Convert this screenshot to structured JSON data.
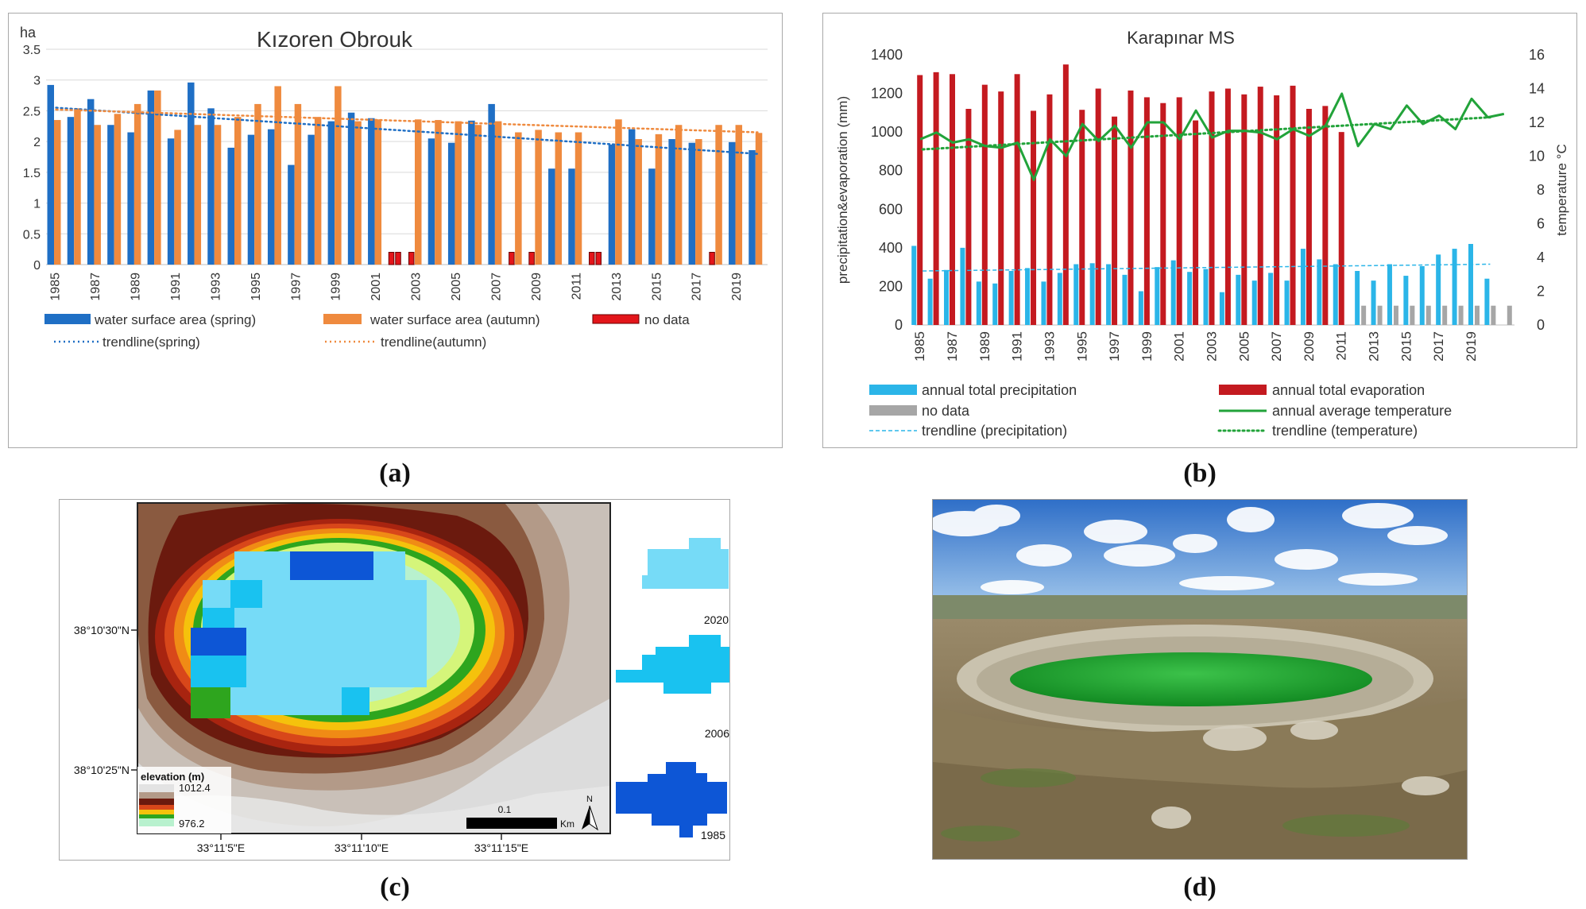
{
  "captions": {
    "a": "(a)",
    "b": "(b)",
    "c": "(c)",
    "d": "(d)"
  },
  "chart_data": [
    {
      "type": "bar",
      "title": "Kızoren Obrouk",
      "ylabel": "ha",
      "ylim": [
        0,
        3.5
      ],
      "yticks": [
        "3.5",
        "3",
        "2.5",
        "2",
        "1.5",
        "1",
        "0.5",
        "0"
      ],
      "x": [
        "1985",
        "1986",
        "1987",
        "1988",
        "1989",
        "1990",
        "1991",
        "1992",
        "1993",
        "1994",
        "1995",
        "1996",
        "1997",
        "1998",
        "1999",
        "2000",
        "2001",
        "2002",
        "2003",
        "2004",
        "2005",
        "2006",
        "2007",
        "2008",
        "2009",
        "2010",
        "2011",
        "2012",
        "2013",
        "2014",
        "2015",
        "2016",
        "2017",
        "2018",
        "2019",
        "2020"
      ],
      "xtick_labels": [
        "1985",
        "1987",
        "1989",
        "1991",
        "1993",
        "1995",
        "1997",
        "1999",
        "2001",
        "2003",
        "2005",
        "2007",
        "2009",
        "2011",
        "2013",
        "2015",
        "2017",
        "2019"
      ],
      "series": [
        {
          "name": "water surface area (spring)",
          "color": "#1f6fc5",
          "values": [
            2.92,
            2.4,
            2.69,
            2.27,
            2.15,
            2.83,
            2.05,
            2.96,
            2.54,
            1.9,
            2.11,
            2.2,
            1.62,
            2.11,
            2.33,
            2.47,
            2.38,
            null,
            null,
            2.05,
            1.98,
            2.34,
            2.61,
            null,
            null,
            1.56,
            1.56,
            null,
            1.95,
            2.2,
            1.56,
            2.04,
            1.98,
            null,
            1.99,
            1.86
          ]
        },
        {
          "name": "water surface area (autumn)",
          "color": "#ef8a3e",
          "values": [
            2.35,
            2.54,
            2.27,
            2.45,
            2.61,
            2.83,
            2.19,
            2.27,
            2.27,
            2.4,
            2.61,
            2.9,
            2.61,
            2.4,
            2.9,
            2.33,
            2.36,
            null,
            2.36,
            2.35,
            2.33,
            2.27,
            2.33,
            2.15,
            2.19,
            2.15,
            2.15,
            null,
            2.36,
            2.04,
            2.12,
            2.27,
            2.04,
            2.27,
            2.27,
            2.14
          ]
        }
      ],
      "no_data": [
        {
          "year": "2002",
          "slots": [
            "spring",
            "autumn"
          ]
        },
        {
          "year": "2003",
          "slots": [
            "spring"
          ]
        },
        {
          "year": "2008",
          "slots": [
            "spring"
          ]
        },
        {
          "year": "2009",
          "slots": [
            "spring"
          ]
        },
        {
          "year": "2012",
          "slots": [
            "spring",
            "autumn"
          ]
        },
        {
          "year": "2018",
          "slots": [
            "spring"
          ]
        }
      ],
      "no_data_value": 0.2,
      "trendlines": [
        {
          "name": "trendline(spring)",
          "color": "#1f6fc5",
          "start": 2.55,
          "end": 1.8
        },
        {
          "name": "trendline(autumn)",
          "color": "#ef8a3e",
          "start": 2.52,
          "end": 2.15
        }
      ],
      "legend": [
        "water surface area (spring)",
        "water surface area (autumn)",
        "no data",
        "trendline(spring)",
        "trendline(autumn)"
      ],
      "legend_position": "bottom",
      "no_data_color": "#e3151a"
    },
    {
      "type": "bar",
      "title": "Karapınar MS",
      "ylabel": "precipitation&evaporation (mm)",
      "y2label": "temperature °C",
      "ylim": [
        0,
        1400
      ],
      "y2lim": [
        0,
        16
      ],
      "yticks": [
        "1400",
        "1200",
        "1000",
        "800",
        "600",
        "400",
        "200",
        "0"
      ],
      "y2ticks": [
        "16",
        "14",
        "12",
        "10",
        "8",
        "6",
        "4",
        "2",
        "0"
      ],
      "x": [
        "1985",
        "1986",
        "1987",
        "1988",
        "1989",
        "1990",
        "1991",
        "1992",
        "1993",
        "1994",
        "1995",
        "1996",
        "1997",
        "1998",
        "1999",
        "2000",
        "2001",
        "2002",
        "2003",
        "2004",
        "2005",
        "2006",
        "2007",
        "2008",
        "2009",
        "2010",
        "2011",
        "2012",
        "2013",
        "2014",
        "2015",
        "2016",
        "2017",
        "2018",
        "2019",
        "2020",
        "2021"
      ],
      "xtick_labels": [
        "1985",
        "1987",
        "1989",
        "1991",
        "1993",
        "1995",
        "1997",
        "1999",
        "2001",
        "2003",
        "2005",
        "2007",
        "2009",
        "2011",
        "2013",
        "2015",
        "2017",
        "2019"
      ],
      "series": [
        {
          "name": "annual total precipitation",
          "color": "#2bb5e8",
          "values": [
            410,
            240,
            285,
            400,
            225,
            215,
            280,
            295,
            225,
            270,
            315,
            320,
            315,
            260,
            175,
            300,
            335,
            275,
            290,
            170,
            260,
            230,
            270,
            230,
            395,
            340,
            315,
            280,
            230,
            315,
            255,
            305,
            365,
            395,
            420,
            240,
            null
          ]
        },
        {
          "name": "annual total evaporation",
          "color": "#c41a20",
          "values": [
            1295,
            1310,
            1300,
            1120,
            1245,
            1210,
            1300,
            1110,
            1195,
            1350,
            1115,
            1225,
            1080,
            1215,
            1180,
            1150,
            1180,
            1060,
            1210,
            1225,
            1195,
            1235,
            1190,
            1240,
            1120,
            1135,
            1000,
            null,
            null,
            null,
            null,
            null,
            null,
            null,
            null,
            null,
            null
          ]
        },
        {
          "name": "no data",
          "color": "#a6a6a6",
          "values": [
            null,
            null,
            null,
            null,
            null,
            null,
            null,
            null,
            null,
            null,
            null,
            null,
            null,
            null,
            null,
            null,
            null,
            null,
            null,
            null,
            null,
            null,
            null,
            null,
            null,
            null,
            null,
            100,
            100,
            100,
            100,
            100,
            100,
            100,
            100,
            100,
            100
          ]
        },
        {
          "name": "annual average temperature",
          "color": "#22a33a",
          "axis": "y2",
          "type": "line",
          "values": [
            11,
            11.4,
            10.8,
            11,
            10.6,
            10.5,
            10.8,
            8.6,
            11,
            10,
            11.9,
            10.9,
            11.8,
            10.5,
            12,
            12,
            11,
            12.7,
            11.1,
            11.5,
            11.5,
            11.4,
            11,
            11.6,
            11.2,
            11.8,
            13.7,
            10.6,
            11.9,
            11.6,
            13,
            11.9,
            12.4,
            11.6,
            13.4,
            12.3,
            12.5
          ]
        }
      ],
      "trendlines": [
        {
          "name": "trendline (precipitation)",
          "color": "#2bb5e8",
          "start": 280,
          "end": 315
        },
        {
          "name": "trendline (temperature)",
          "color": "#22a33a",
          "axis": "y2",
          "start": 10.4,
          "end": 12.3
        }
      ],
      "legend": [
        "annual total precipitation",
        "annual total evaporation",
        "no data",
        "annual average temperature",
        "trendline (precipitation)",
        "trendline (temperature)"
      ],
      "legend_position": "bottom"
    }
  ],
  "map": {
    "legend_title": "elevation (m)",
    "legend_max": "1012.4",
    "legend_min": "976.2",
    "lat_labels": [
      "38°10'30\"N",
      "38°10'25\"N"
    ],
    "lon_labels": [
      "33°11'5\"E",
      "33°11'10\"E",
      "33°11'15\"E"
    ],
    "scale_value": "0.1",
    "scale_unit": "Km",
    "north": "N",
    "years": [
      "2020",
      "2006",
      "1985"
    ],
    "year_colors": [
      "#76dbf7",
      "#19c2f0",
      "#0d56d6"
    ]
  },
  "photo": {
    "lake_color": "#26b035",
    "sky_color": "#3d7fd0"
  }
}
